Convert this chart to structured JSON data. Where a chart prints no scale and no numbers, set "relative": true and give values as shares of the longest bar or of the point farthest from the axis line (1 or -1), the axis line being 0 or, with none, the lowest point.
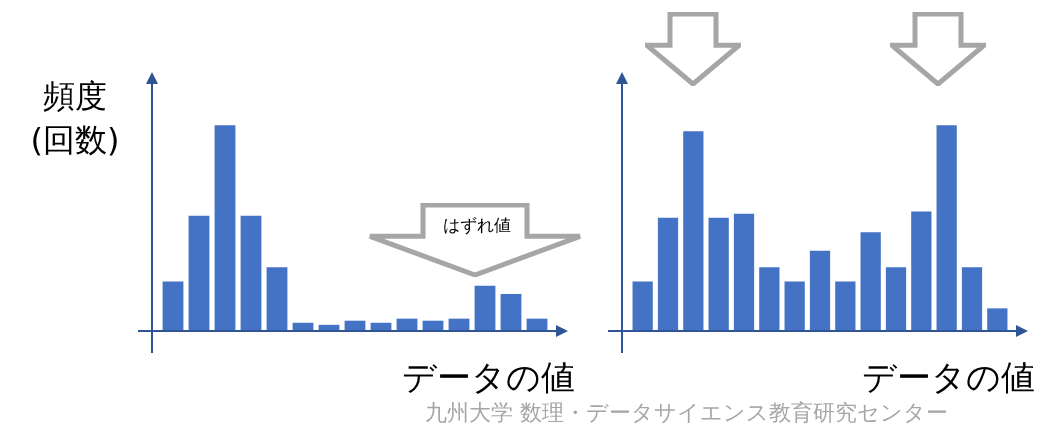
{
  "chart_data": [
    {
      "type": "bar",
      "relative": true,
      "categories": [
        null,
        null,
        null,
        null,
        null,
        null,
        null,
        null,
        null,
        null,
        null,
        null,
        null,
        null,
        null
      ],
      "values": [
        0.24,
        0.56,
        1,
        0.56,
        0.31,
        0.04,
        0.03,
        0.05,
        0.04,
        0.06,
        0.05,
        0.06,
        0.22,
        0.18,
        0.06
      ],
      "color": "#4472c4",
      "ylabel": "頻度\n(回数)",
      "xlabel": "データの値",
      "annotations": [
        "はずれ値"
      ]
    },
    {
      "type": "bar",
      "relative": true,
      "categories": [
        null,
        null,
        null,
        null,
        null,
        null,
        null,
        null,
        null,
        null,
        null,
        null,
        null,
        null,
        null
      ],
      "values": [
        0.24,
        0.55,
        0.97,
        0.55,
        0.57,
        0.31,
        0.24,
        0.39,
        0.24,
        0.48,
        0.31,
        0.58,
        1,
        0.31,
        0.11
      ],
      "color": "#4472c4",
      "xlabel": "データの値",
      "annotations": [
        "九州大学 数理・データサイエンス教育研究センター"
      ]
    }
  ]
}
